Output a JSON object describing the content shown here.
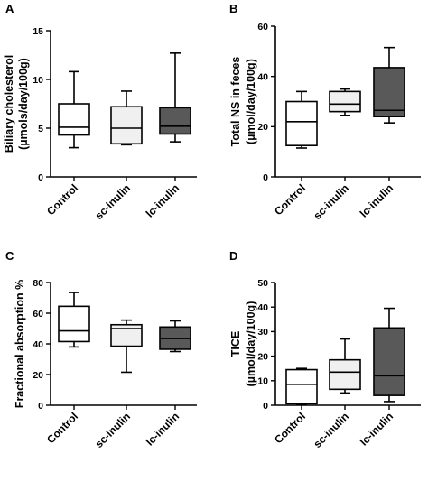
{
  "figure": {
    "colors": {
      "Control": "#ffffff",
      "sc-inulin": "#f0f0f0",
      "lc-inulin": "#595959",
      "ink": "#000000"
    }
  },
  "chart_data": [
    {
      "panel": "A",
      "type": "box",
      "ylabel": [
        "Biliary cholesterol",
        "(µmols/day/100g)"
      ],
      "ylim": [
        0,
        15
      ],
      "yticks": [
        0,
        5,
        10,
        15
      ],
      "categories": [
        "Control",
        "sc-inulin",
        "lc-inulin"
      ],
      "boxes": [
        {
          "category": "Control",
          "min": 3.0,
          "q1": 4.3,
          "median": 5.1,
          "q3": 7.5,
          "max": 10.8
        },
        {
          "category": "sc-inulin",
          "min": 3.3,
          "q1": 3.4,
          "median": 5.0,
          "q3": 7.2,
          "max": 8.8
        },
        {
          "category": "lc-inulin",
          "min": 3.6,
          "q1": 4.4,
          "median": 5.2,
          "q3": 7.1,
          "max": 12.7
        }
      ]
    },
    {
      "panel": "B",
      "type": "box",
      "ylabel": [
        "Total NS in feces",
        "(µmol/day/100g)"
      ],
      "ylim": [
        0,
        60
      ],
      "yticks": [
        0,
        20,
        40,
        60
      ],
      "categories": [
        "Control",
        "sc-inulin",
        "lc-inulin"
      ],
      "boxes": [
        {
          "category": "Control",
          "min": 11.5,
          "q1": 12.5,
          "median": 22.0,
          "q3": 30.0,
          "max": 34.0
        },
        {
          "category": "sc-inulin",
          "min": 24.5,
          "q1": 26.0,
          "median": 29.0,
          "q3": 34.0,
          "max": 35.0
        },
        {
          "category": "lc-inulin",
          "min": 21.5,
          "q1": 24.0,
          "median": 26.5,
          "q3": 43.5,
          "max": 51.5
        }
      ]
    },
    {
      "panel": "C",
      "type": "box",
      "ylabel": [
        "Fractional absorption %"
      ],
      "ylim": [
        0,
        80
      ],
      "yticks": [
        0,
        20,
        40,
        60,
        80
      ],
      "categories": [
        "Control",
        "sc-inulin",
        "lc-inulin"
      ],
      "boxes": [
        {
          "category": "Control",
          "min": 38.0,
          "q1": 41.5,
          "median": 48.5,
          "q3": 64.5,
          "max": 73.5
        },
        {
          "category": "sc-inulin",
          "min": 21.5,
          "q1": 38.5,
          "median": 50.0,
          "q3": 52.5,
          "max": 55.5
        },
        {
          "category": "lc-inulin",
          "min": 35.0,
          "q1": 36.5,
          "median": 43.5,
          "q3": 51.0,
          "max": 55.0
        }
      ]
    },
    {
      "panel": "D",
      "type": "box",
      "ylabel": [
        "TICE",
        "(µmol/day/100g)"
      ],
      "ylim": [
        0,
        50
      ],
      "yticks": [
        0,
        10,
        20,
        30,
        40,
        50
      ],
      "categories": [
        "Control",
        "sc-inulin",
        "lc-inulin"
      ],
      "boxes": [
        {
          "category": "Control",
          "min": 0.3,
          "q1": 0.6,
          "median": 8.5,
          "q3": 14.5,
          "max": 15.0
        },
        {
          "category": "sc-inulin",
          "min": 5.0,
          "q1": 6.5,
          "median": 13.5,
          "q3": 18.5,
          "max": 27.0
        },
        {
          "category": "lc-inulin",
          "min": 1.5,
          "q1": 4.0,
          "median": 12.0,
          "q3": 31.5,
          "max": 39.5
        }
      ]
    }
  ]
}
